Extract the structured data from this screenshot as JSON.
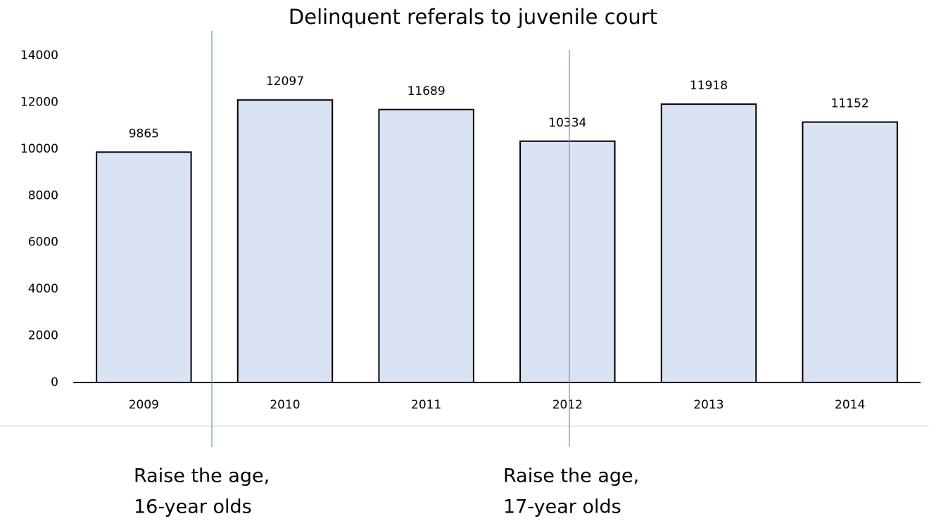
{
  "chart_data": {
    "type": "bar",
    "title": "Delinquent referals to juvenile court",
    "categories": [
      "2009",
      "2010",
      "2011",
      "2012",
      "2013",
      "2014"
    ],
    "values": [
      9865,
      12097,
      11689,
      10334,
      11918,
      11152
    ],
    "color": "#dae3f3",
    "ylim": [
      0,
      14000
    ],
    "yticks": [
      0,
      2000,
      4000,
      6000,
      8000,
      10000,
      12000,
      14000
    ],
    "grid": false,
    "annotations": [
      {
        "lines": [
          "Raise the age,",
          "16-year olds"
        ]
      },
      {
        "lines": [
          "Raise the age,",
          "17-year olds"
        ]
      }
    ]
  }
}
